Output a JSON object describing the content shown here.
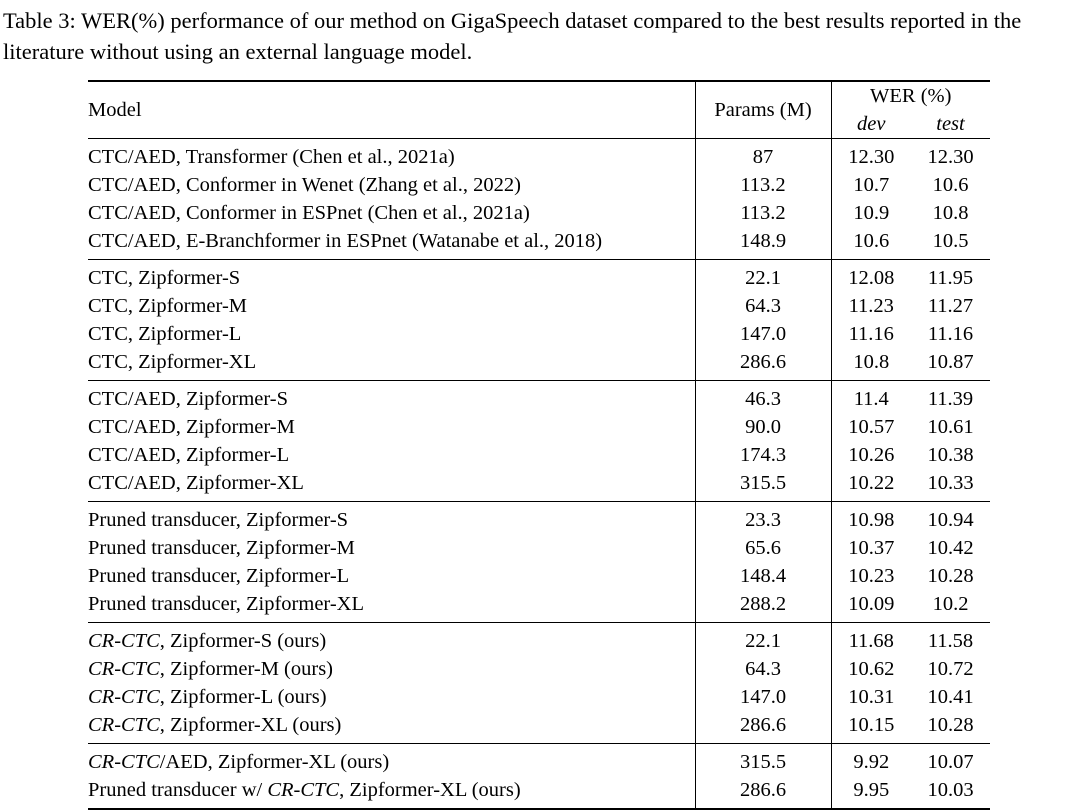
{
  "caption": {
    "label": "Table 3:",
    "text": "WER(%) performance of our method on GigaSpeech dataset compared to the best results reported in the literature without using an external language model."
  },
  "colors": {
    "background": "#ffffff",
    "text": "#000000",
    "rule": "#000000"
  },
  "table": {
    "headers": {
      "model": "Model",
      "params": "Params (M)",
      "wer": "WER (%)",
      "dev": "dev",
      "test": "test"
    },
    "groups": [
      {
        "rows": [
          {
            "model": [
              {
                "t": "CTC/AED, Transformer (Chen et al., 2021a)"
              }
            ],
            "params": "87",
            "dev": "12.30",
            "test": "12.30"
          },
          {
            "model": [
              {
                "t": "CTC/AED, Conformer in Wenet (Zhang et al., 2022)"
              }
            ],
            "params": "113.2",
            "dev": "10.7",
            "test": "10.6"
          },
          {
            "model": [
              {
                "t": "CTC/AED, Conformer in ESPnet (Chen et al., 2021a)"
              }
            ],
            "params": "113.2",
            "dev": "10.9",
            "test": "10.8"
          },
          {
            "model": [
              {
                "t": "CTC/AED, E-Branchformer in ESPnet (Watanabe et al., 2018)"
              }
            ],
            "params": "148.9",
            "dev": "10.6",
            "test": "10.5"
          }
        ]
      },
      {
        "rows": [
          {
            "model": [
              {
                "t": "CTC, Zipformer-S"
              }
            ],
            "params": "22.1",
            "dev": "12.08",
            "test": "11.95"
          },
          {
            "model": [
              {
                "t": "CTC, Zipformer-M"
              }
            ],
            "params": "64.3",
            "dev": "11.23",
            "test": "11.27"
          },
          {
            "model": [
              {
                "t": "CTC, Zipformer-L"
              }
            ],
            "params": "147.0",
            "dev": "11.16",
            "test": "11.16"
          },
          {
            "model": [
              {
                "t": "CTC, Zipformer-XL"
              }
            ],
            "params": "286.6",
            "dev": "10.8",
            "test": "10.87"
          }
        ]
      },
      {
        "rows": [
          {
            "model": [
              {
                "t": "CTC/AED, Zipformer-S"
              }
            ],
            "params": "46.3",
            "dev": "11.4",
            "test": "11.39"
          },
          {
            "model": [
              {
                "t": "CTC/AED, Zipformer-M"
              }
            ],
            "params": "90.0",
            "dev": "10.57",
            "test": "10.61"
          },
          {
            "model": [
              {
                "t": "CTC/AED, Zipformer-L"
              }
            ],
            "params": "174.3",
            "dev": "10.26",
            "test": "10.38"
          },
          {
            "model": [
              {
                "t": "CTC/AED, Zipformer-XL"
              }
            ],
            "params": "315.5",
            "dev": "10.22",
            "test": "10.33"
          }
        ]
      },
      {
        "rows": [
          {
            "model": [
              {
                "t": "Pruned transducer, Zipformer-S"
              }
            ],
            "params": "23.3",
            "dev": "10.98",
            "test": "10.94"
          },
          {
            "model": [
              {
                "t": "Pruned transducer, Zipformer-M"
              }
            ],
            "params": "65.6",
            "dev": "10.37",
            "test": "10.42"
          },
          {
            "model": [
              {
                "t": "Pruned transducer, Zipformer-L"
              }
            ],
            "params": "148.4",
            "dev": "10.23",
            "test": "10.28"
          },
          {
            "model": [
              {
                "t": "Pruned transducer, Zipformer-XL"
              }
            ],
            "params": "288.2",
            "dev": "10.09",
            "test": "10.2"
          }
        ]
      },
      {
        "rows": [
          {
            "model": [
              {
                "t": "CR-CTC",
                "i": true
              },
              {
                "t": ", Zipformer-S (ours)"
              }
            ],
            "params": "22.1",
            "dev": "11.68",
            "test": "11.58"
          },
          {
            "model": [
              {
                "t": "CR-CTC",
                "i": true
              },
              {
                "t": ", Zipformer-M (ours)"
              }
            ],
            "params": "64.3",
            "dev": "10.62",
            "test": "10.72"
          },
          {
            "model": [
              {
                "t": "CR-CTC",
                "i": true
              },
              {
                "t": ", Zipformer-L (ours)"
              }
            ],
            "params": "147.0",
            "dev": "10.31",
            "test": "10.41"
          },
          {
            "model": [
              {
                "t": "CR-CTC",
                "i": true
              },
              {
                "t": ", Zipformer-XL (ours)"
              }
            ],
            "params": "286.6",
            "dev": "10.15",
            "test": "10.28"
          }
        ]
      },
      {
        "rows": [
          {
            "model": [
              {
                "t": "CR-CTC",
                "i": true
              },
              {
                "t": "/AED, Zipformer-XL (ours)"
              }
            ],
            "params": "315.5",
            "dev": "9.92",
            "dev_bold": true,
            "test": "10.07"
          },
          {
            "model": [
              {
                "t": "Pruned transducer w/ "
              },
              {
                "t": "CR-CTC",
                "i": true
              },
              {
                "t": ", Zipformer-XL (ours)"
              }
            ],
            "params": "286.6",
            "dev": "9.95",
            "test": "10.03",
            "test_bold": true
          }
        ]
      }
    ]
  }
}
